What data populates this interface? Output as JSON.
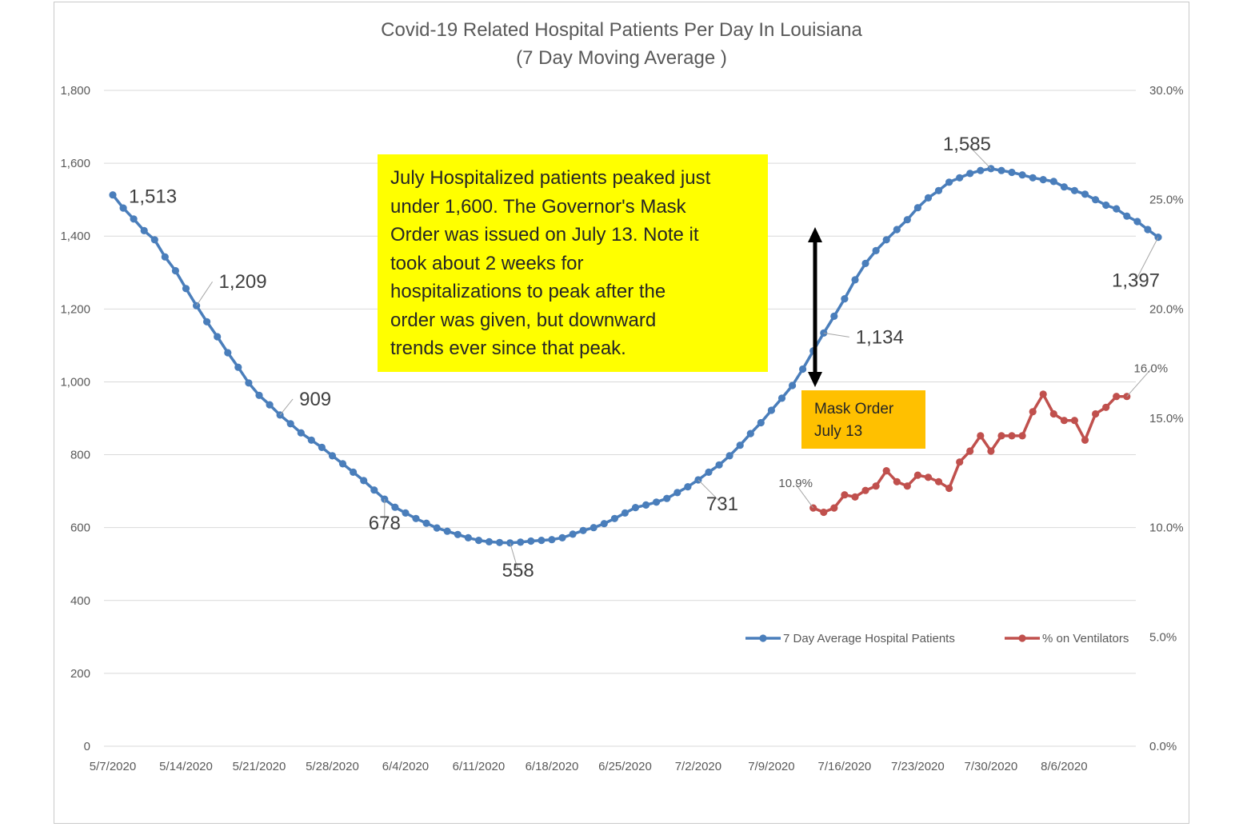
{
  "chart_data": {
    "type": "line",
    "title": "Covid-19 Related Hospital Patients Per Day In Louisiana",
    "subtitle": "(7 Day Moving Average )",
    "y_left": {
      "ticks": [
        "0",
        "200",
        "400",
        "600",
        "800",
        "1,000",
        "1,200",
        "1,400",
        "1,600",
        "1,800"
      ],
      "range": [
        0,
        1800
      ]
    },
    "y_right": {
      "ticks": [
        "0.0%",
        "5.0%",
        "10.0%",
        "15.0%",
        "20.0%",
        "25.0%",
        "30.0%"
      ],
      "range": [
        0,
        0.3
      ]
    },
    "x_ticks": [
      "5/7/2020",
      "5/14/2020",
      "5/21/2020",
      "5/28/2020",
      "6/4/2020",
      "6/11/2020",
      "6/18/2020",
      "6/25/2020",
      "7/2/2020",
      "7/9/2020",
      "7/16/2020",
      "7/23/2020",
      "7/30/2020",
      "8/6/2020"
    ],
    "x_start": "5/7/2020",
    "grid": true,
    "legend_position": "bottom-right",
    "series": [
      {
        "name": "7 Day Average Hospital Patients",
        "axis": "left",
        "color": "#4a7ebb",
        "start_date": "5/7/2020",
        "values": [
          1513,
          1477,
          1447,
          1415,
          1390,
          1343,
          1305,
          1256,
          1209,
          1165,
          1124,
          1080,
          1040,
          997,
          963,
          937,
          909,
          885,
          860,
          840,
          820,
          797,
          775,
          752,
          729,
          703,
          678,
          656,
          640,
          625,
          612,
          599,
          590,
          581,
          572,
          565,
          561,
          559,
          558,
          560,
          563,
          565,
          567,
          572,
          582,
          592,
          600,
          611,
          625,
          640,
          655,
          662,
          670,
          680,
          696,
          712,
          731,
          752,
          772,
          797,
          826,
          858,
          888,
          922,
          955,
          990,
          1035,
          1085,
          1134,
          1180,
          1228,
          1280,
          1325,
          1360,
          1390,
          1418,
          1445,
          1478,
          1505,
          1525,
          1548,
          1560,
          1572,
          1580,
          1585,
          1580,
          1575,
          1568,
          1560,
          1555,
          1550,
          1535,
          1525,
          1515,
          1500,
          1485,
          1475,
          1455,
          1440,
          1418,
          1397
        ]
      },
      {
        "name": "% on Ventilators",
        "axis": "right",
        "color": "#c0504d",
        "start_date": "7/13/2020",
        "values": [
          0.109,
          0.107,
          0.109,
          0.115,
          0.114,
          0.117,
          0.119,
          0.126,
          0.121,
          0.119,
          0.124,
          0.123,
          0.121,
          0.118,
          0.13,
          0.135,
          0.142,
          0.135,
          0.142,
          0.142,
          0.142,
          0.153,
          0.161,
          0.152,
          0.149,
          0.149,
          0.14,
          0.152,
          0.155,
          0.16,
          0.16
        ]
      }
    ],
    "data_labels": [
      {
        "series": 0,
        "index": 0,
        "text": "1,513"
      },
      {
        "series": 0,
        "index": 8,
        "text": "1,209"
      },
      {
        "series": 0,
        "index": 16,
        "text": "909"
      },
      {
        "series": 0,
        "index": 26,
        "text": "678"
      },
      {
        "series": 0,
        "index": 38,
        "text": "558"
      },
      {
        "series": 0,
        "index": 56,
        "text": "731"
      },
      {
        "series": 0,
        "index": 68,
        "text": "1,134"
      },
      {
        "series": 0,
        "index": 84,
        "text": "1,585"
      },
      {
        "series": 0,
        "index": 100,
        "text": "1,397"
      },
      {
        "series": 1,
        "index": 0,
        "text": "10.9%"
      },
      {
        "series": 1,
        "index": 30,
        "text": "16.0%"
      }
    ]
  },
  "annotations": {
    "note_lines": [
      "July Hospitalized patients peaked just",
      "under 1,600.  The Governor's Mask",
      "Order was issued on July 13.  Note it",
      "took about 2 weeks for",
      "hospitalizations to peak after the",
      "order was given, but downward",
      "trends ever since that peak."
    ],
    "note_color": "#ffff00",
    "mask_lines": [
      "Mask Order",
      "July 13"
    ],
    "mask_color": "#ffc000"
  }
}
